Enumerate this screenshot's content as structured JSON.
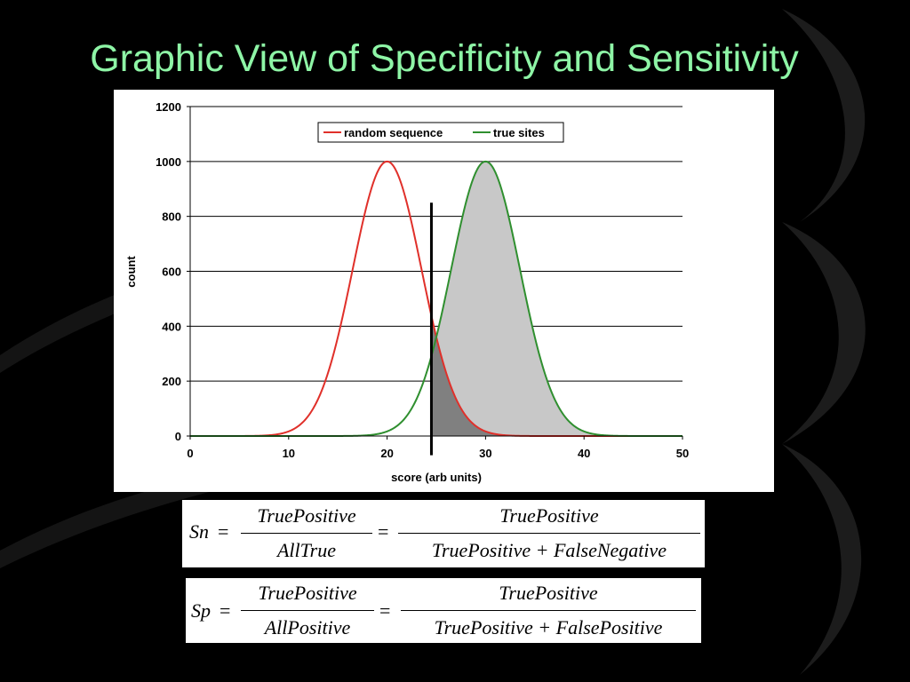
{
  "slide": {
    "title": "Graphic View of Specificity and Sensitivity",
    "background_color": "#000000",
    "title_color": "#8ef5a6"
  },
  "chart_data": {
    "type": "line",
    "xlabel": "score (arb units)",
    "ylabel": "count",
    "xlim": [
      0,
      50
    ],
    "ylim": [
      0,
      1200
    ],
    "x_ticks": [
      0,
      10,
      20,
      30,
      40,
      50
    ],
    "y_ticks": [
      0,
      200,
      400,
      600,
      800,
      1000,
      1200
    ],
    "grid": "horizontal",
    "legend_position": "top-right",
    "series": [
      {
        "name": "random sequence",
        "color": "#e0302a",
        "distribution": "normal",
        "peak_x": 20,
        "peak_y": 1000,
        "spread_sd": 3.5,
        "x_range": [
          7.5,
          33
        ]
      },
      {
        "name": "true sites",
        "color": "#2f8f2f",
        "fill_color": "#c8c8c8",
        "distribution": "normal",
        "peak_x": 30,
        "peak_y": 1000,
        "spread_sd": 3.5,
        "x_range": [
          15,
          45
        ]
      }
    ],
    "threshold": {
      "x": 24.5,
      "y_top": 850,
      "y_bottom": -70,
      "color": "#000000"
    },
    "overlap_fill_color": "#808080"
  },
  "formulas": {
    "sn": {
      "lhs": "Sn",
      "eq1": "=",
      "frac1_num": "TruePositive",
      "frac1_den": "AllTrue",
      "eq2": "=",
      "frac2_num": "TruePositive",
      "frac2_den": "TruePositive + FalseNegative"
    },
    "sp": {
      "lhs": "Sp",
      "eq1": "=",
      "frac1_num": "TruePositive",
      "frac1_den": "AllPositive",
      "eq2": "=",
      "frac2_num": "TruePositive",
      "frac2_den": "TruePositive + FalsePositive"
    }
  }
}
